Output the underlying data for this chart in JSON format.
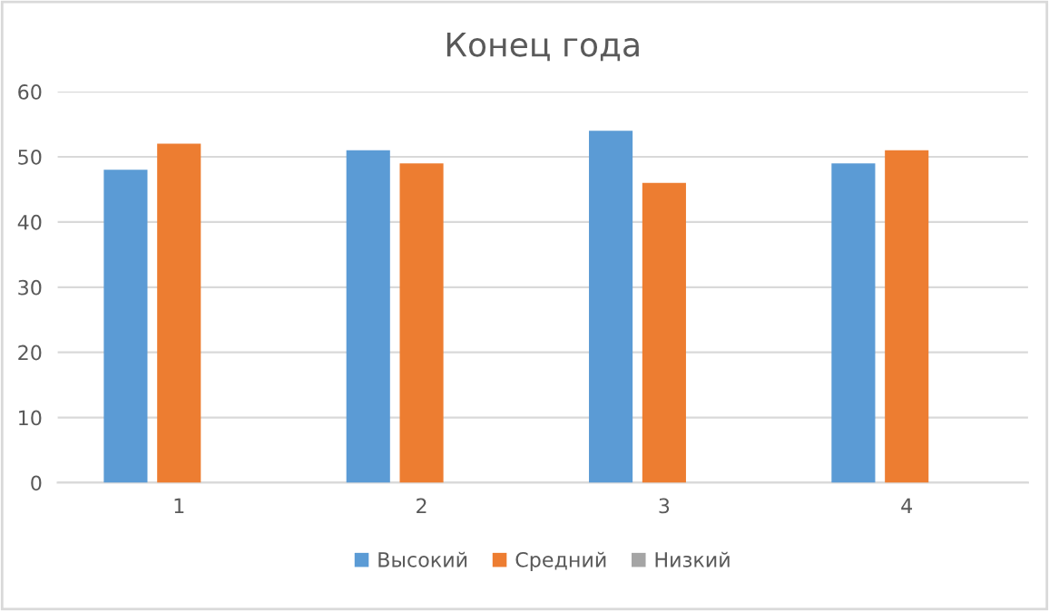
{
  "chart_data": {
    "type": "bar",
    "title": "Конец года",
    "categories": [
      "1",
      "2",
      "3",
      "4"
    ],
    "series": [
      {
        "name": "Высокий",
        "color": "#5b9bd5",
        "values": [
          48,
          51,
          54,
          49
        ]
      },
      {
        "name": "Средний",
        "color": "#ed7d31",
        "values": [
          52,
          49,
          46,
          51
        ]
      },
      {
        "name": "Низкий",
        "color": "#a5a5a5",
        "values": [
          null,
          null,
          null,
          null
        ]
      }
    ],
    "ylim": [
      0,
      60
    ],
    "yticks": [
      0,
      10,
      20,
      30,
      40,
      50,
      60
    ],
    "grid": "y",
    "legend": "bottom"
  }
}
